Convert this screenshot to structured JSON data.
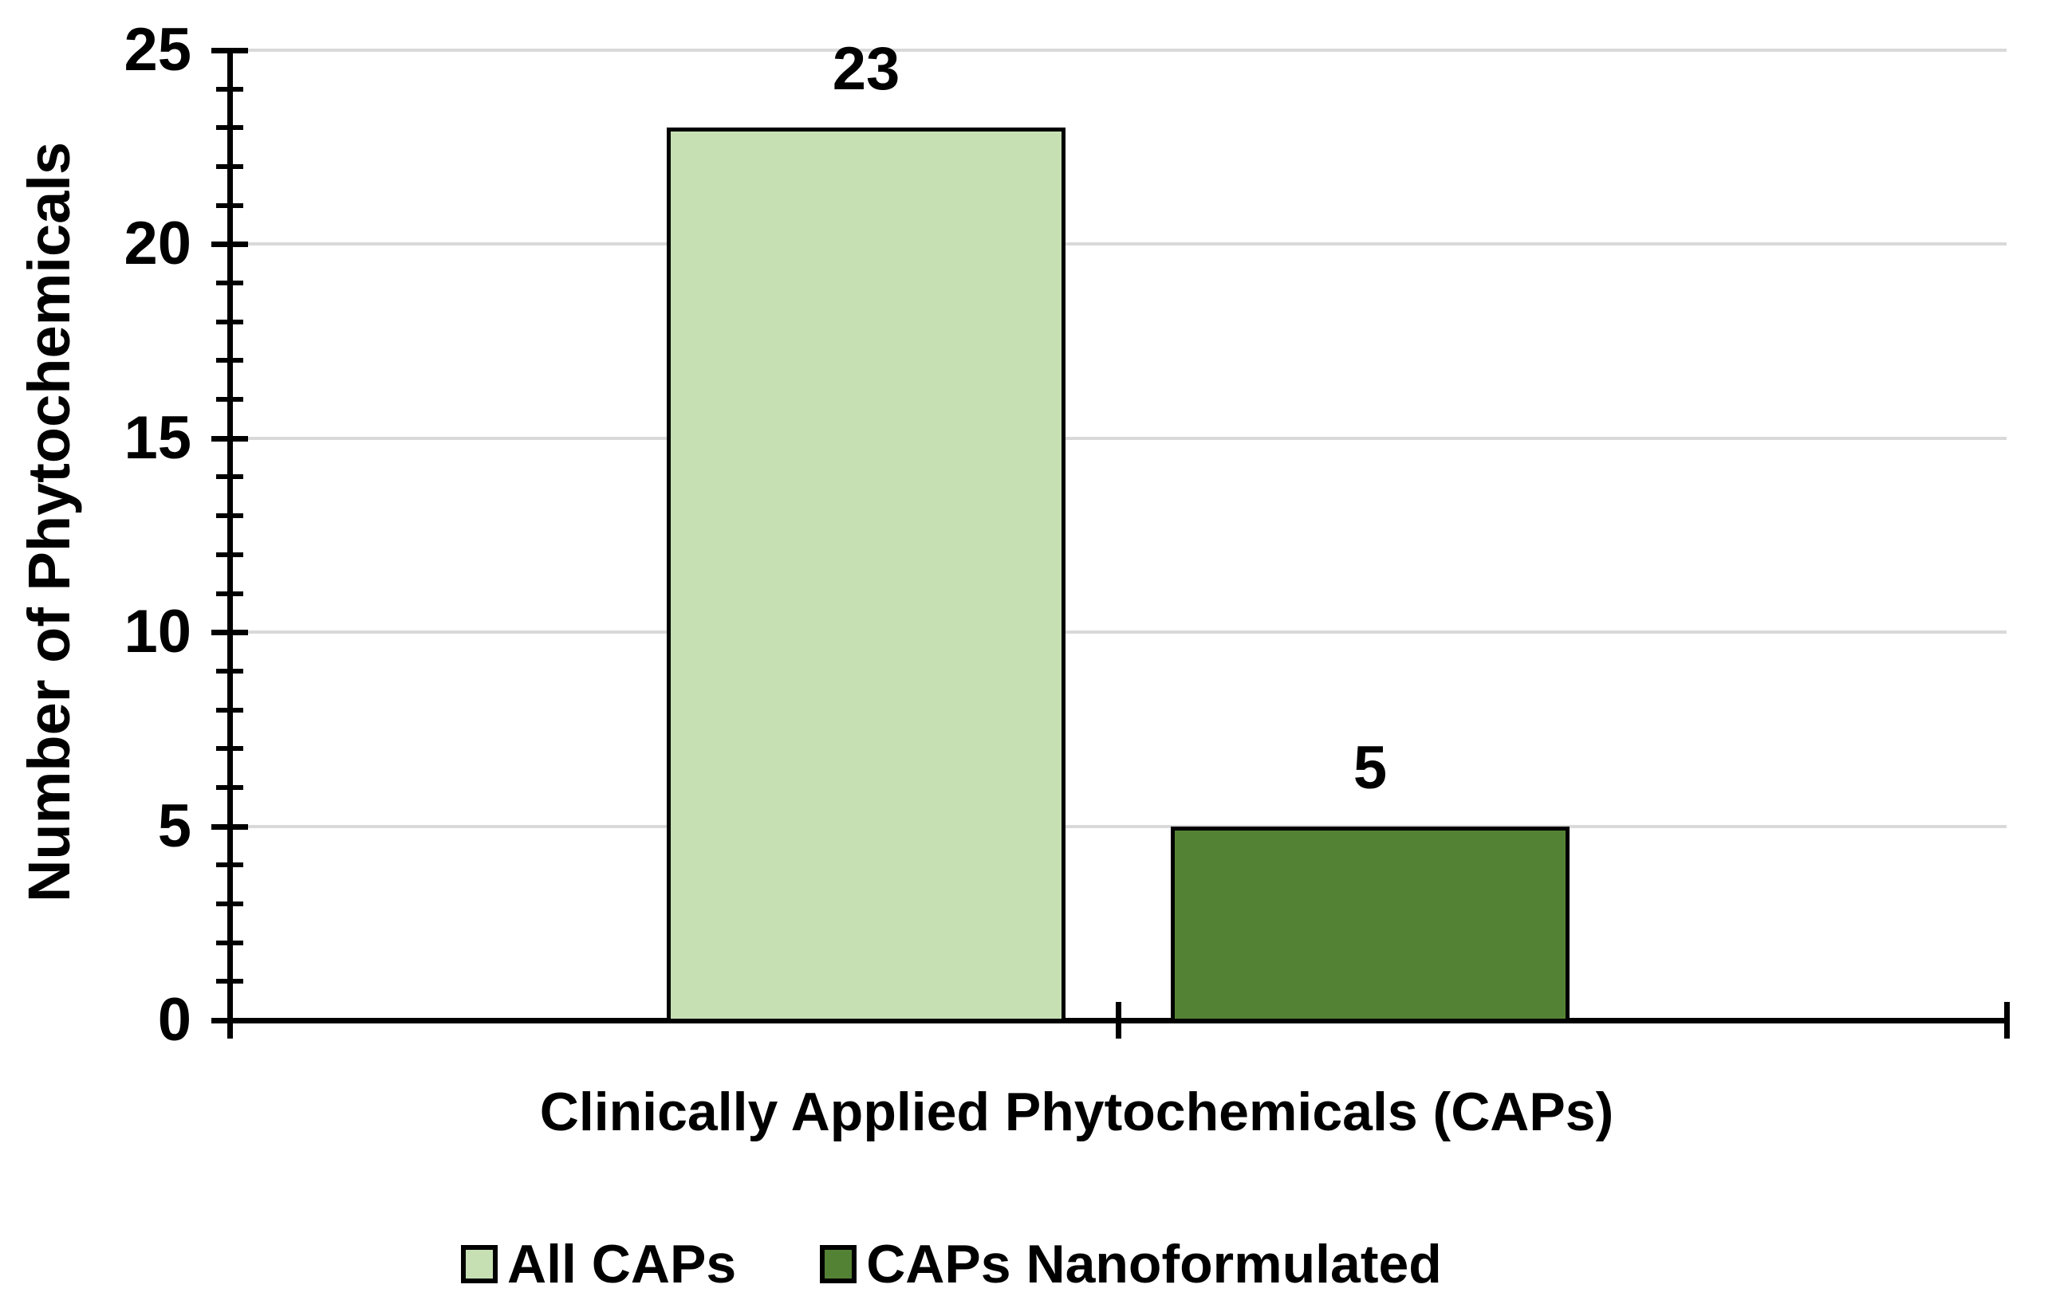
{
  "chart_data": {
    "type": "bar",
    "title": "",
    "xlabel": "Clinically Applied Phytochemicals (CAPs)",
    "ylabel": "Number of Phytochemicals",
    "categories": [
      ""
    ],
    "series": [
      {
        "name": "All CAPs",
        "value": 23,
        "color": "#c6e0b4"
      },
      {
        "name": "CAPs Nanoformulated",
        "value": 5,
        "color": "#548235"
      }
    ],
    "data_labels": [
      "23",
      "5"
    ],
    "ylim": [
      0,
      25
    ],
    "yticks": [
      0,
      5,
      10,
      15,
      20,
      25
    ],
    "minor_tick_interval": 1,
    "grid": "horizontal-major-only",
    "legend_position": "bottom",
    "colors": {
      "gridline": "#d9d9d9",
      "axis": "#000000",
      "bar_border": "#000000",
      "text": "#000000"
    }
  }
}
